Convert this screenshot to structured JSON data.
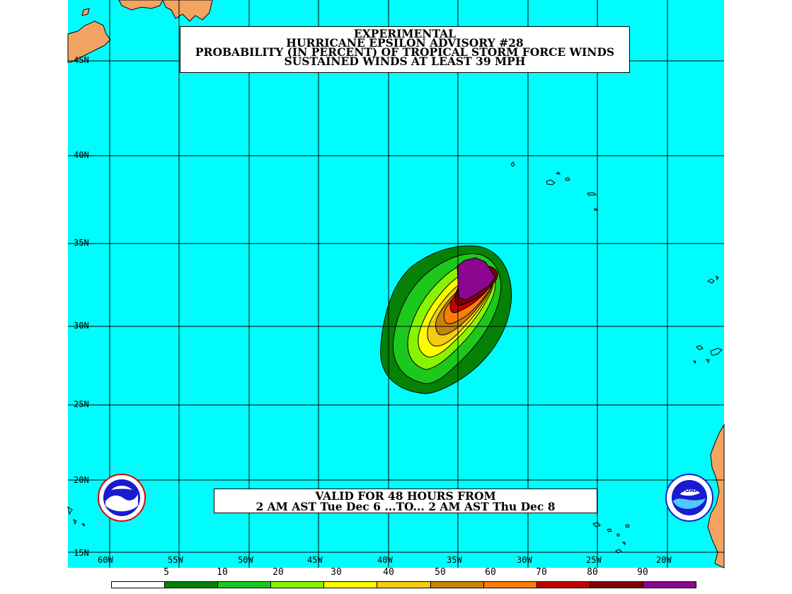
{
  "title": {
    "line1": "EXPERIMENTAL",
    "line2": "HURRICANE EPSILON ADVISORY #28",
    "line3": "PROBABILITY (IN PERCENT) OF TROPICAL STORM FORCE WINDS",
    "line4": "SUSTAINED WINDS AT LEAST 39 MPH"
  },
  "valid": {
    "line1": "VALID FOR 48 HOURS FROM",
    "line2": "2 AM AST Tue Dec 6 ...TO... 2 AM AST Thu Dec 8"
  },
  "latitude_labels": [
    "45N",
    "40N",
    "35N",
    "30N",
    "25N",
    "20N",
    "15N"
  ],
  "longitude_labels": [
    "60W",
    "55W",
    "50W",
    "45W",
    "40W",
    "35W",
    "30W",
    "25W",
    "20W"
  ],
  "legend": {
    "labels": [
      "5",
      "10",
      "20",
      "30",
      "40",
      "50",
      "60",
      "70",
      "80",
      "90"
    ],
    "colors": [
      "#ffffff",
      "#058205",
      "#1dc81d",
      "#88f400",
      "#fdfd00",
      "#f5cb12",
      "#c7840a",
      "#ff7d06",
      "#c40000",
      "#820000",
      "#8c068f"
    ]
  },
  "colors": {
    "ocean": "#00fdfd",
    "land": "#f3a462",
    "grid": "#000000"
  },
  "logos": {
    "left": "national-weather-service-logo",
    "right": "noaa-logo",
    "noaa_text": "NOAA"
  }
}
